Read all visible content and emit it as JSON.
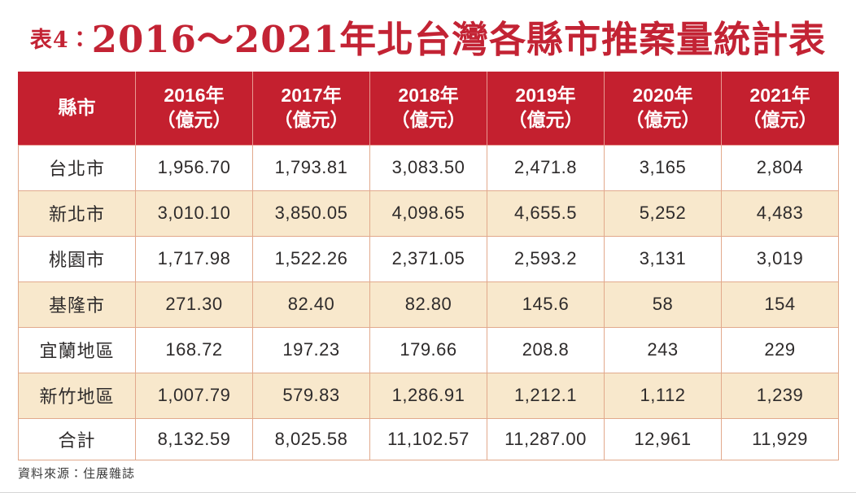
{
  "title": {
    "prefix": "表4：",
    "main": "2016～2021年北台灣各縣市推案量統計表"
  },
  "table": {
    "corner": "縣市",
    "headers": [
      {
        "year": "2016年",
        "unit": "（億元）"
      },
      {
        "year": "2017年",
        "unit": "（億元）"
      },
      {
        "year": "2018年",
        "unit": "（億元）"
      },
      {
        "year": "2019年",
        "unit": "（億元）"
      },
      {
        "year": "2020年",
        "unit": "（億元）"
      },
      {
        "year": "2021年",
        "unit": "（億元）"
      }
    ],
    "rows": [
      {
        "label": "台北市",
        "values": [
          "1,956.70",
          "1,793.81",
          "3,083.50",
          "2,471.8",
          "3,165",
          "2,804"
        ]
      },
      {
        "label": "新北市",
        "values": [
          "3,010.10",
          "3,850.05",
          "4,098.65",
          "4,655.5",
          "5,252",
          "4,483"
        ]
      },
      {
        "label": "桃園市",
        "values": [
          "1,717.98",
          "1,522.26",
          "2,371.05",
          "2,593.2",
          "3,131",
          "3,019"
        ]
      },
      {
        "label": "基隆市",
        "values": [
          "271.30",
          "82.40",
          "82.80",
          "145.6",
          "58",
          "154"
        ]
      },
      {
        "label": "宜蘭地區",
        "values": [
          "168.72",
          "197.23",
          "179.66",
          "208.8",
          "243",
          "229"
        ]
      },
      {
        "label": "新竹地區",
        "values": [
          "1,007.79",
          "579.83",
          "1,286.91",
          "1,212.1",
          "1,112",
          "1,239"
        ]
      },
      {
        "label": "合計",
        "values": [
          "8,132.59",
          "8,025.58",
          "11,102.57",
          "11,287.00",
          "12,961",
          "11,929"
        ]
      }
    ]
  },
  "footer": {
    "source": "資料來源：住展雜誌"
  },
  "colors": {
    "title_red": "#c32334",
    "header_bg": "#c4202f",
    "header_text": "#ffffff",
    "row_alt_bg": "#f8e8cc",
    "row_bg": "#ffffff",
    "cell_border": "#e2a98c",
    "cell_text": "#2e2b2b"
  },
  "chart_data": {
    "type": "table",
    "title": "表4：2016～2021年北台灣各縣市推案量統計表",
    "columns": [
      "縣市",
      "2016年（億元）",
      "2017年（億元）",
      "2018年（億元）",
      "2019年（億元）",
      "2020年（億元）",
      "2021年（億元）"
    ],
    "rows": [
      [
        "台北市",
        1956.7,
        1793.81,
        3083.5,
        2471.8,
        3165,
        2804
      ],
      [
        "新北市",
        3010.1,
        3850.05,
        4098.65,
        4655.5,
        5252,
        4483
      ],
      [
        "桃園市",
        1717.98,
        1522.26,
        2371.05,
        2593.2,
        3131,
        3019
      ],
      [
        "基隆市",
        271.3,
        82.4,
        82.8,
        145.6,
        58,
        154
      ],
      [
        "宜蘭地區",
        168.72,
        197.23,
        179.66,
        208.8,
        243,
        229
      ],
      [
        "新竹地區",
        1007.79,
        579.83,
        1286.91,
        1212.1,
        1112,
        1239
      ],
      [
        "合計",
        8132.59,
        8025.58,
        11102.57,
        11287.0,
        12961,
        11929
      ]
    ],
    "source": "資料來源：住展雜誌"
  }
}
